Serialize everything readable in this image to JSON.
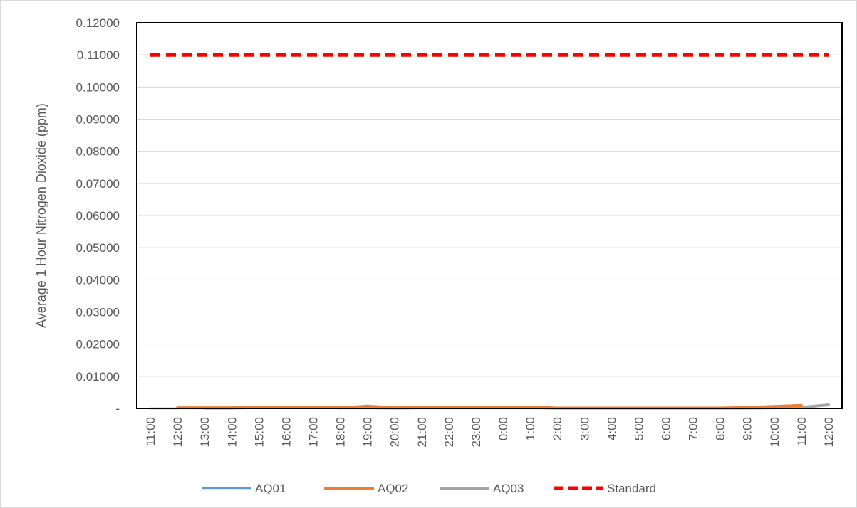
{
  "chart_data": {
    "type": "line",
    "title": "",
    "xlabel": "",
    "ylabel": "Average 1 Hour Nitrogen Dioxide (ppm)",
    "ylim": [
      0,
      0.12
    ],
    "y_ticks": [
      "-",
      "0.01000",
      "0.02000",
      "0.03000",
      "0.04000",
      "0.05000",
      "0.06000",
      "0.07000",
      "0.08000",
      "0.09000",
      "0.10000",
      "0.11000",
      "0.12000"
    ],
    "categories": [
      "11:00",
      "12:00",
      "13:00",
      "14:00",
      "15:00",
      "16:00",
      "17:00",
      "18:00",
      "19:00",
      "20:00",
      "21:00",
      "22:00",
      "23:00",
      "0:00",
      "1:00",
      "2:00",
      "3:00",
      "4:00",
      "5:00",
      "6:00",
      "7:00",
      "8:00",
      "9:00",
      "10:00",
      "11:00",
      "12:00"
    ],
    "series": [
      {
        "name": "AQ01",
        "color": "#5b9bd5",
        "values": [
          0,
          0,
          null,
          null,
          null,
          null,
          null,
          null,
          null,
          null,
          null,
          null,
          null,
          null,
          null,
          null,
          null,
          null,
          null,
          null,
          null,
          null,
          null,
          null,
          null,
          null
        ]
      },
      {
        "name": "AQ02",
        "color": "#ed7d31",
        "values": [
          null,
          0.0002,
          0.0002,
          0.0002,
          0.0004,
          0.0004,
          0.0003,
          0.0002,
          0.0007,
          0.0002,
          0.0004,
          0.0004,
          0.0004,
          0.0004,
          0.0004,
          0.0001,
          0.0001,
          0.0001,
          0.0001,
          0.0001,
          0.0001,
          0.0001,
          0.0003,
          0.0006,
          0.0009,
          null
        ]
      },
      {
        "name": "AQ03",
        "color": "#a5a5a5",
        "values": [
          null,
          null,
          0.0001,
          0.0001,
          0.0003,
          0.0003,
          0.0003,
          0.0002,
          0.0002,
          0.0001,
          0.0002,
          0.0002,
          0.0002,
          0.0002,
          0.0002,
          0.0001,
          0.0001,
          0.0001,
          0.0001,
          0.0001,
          0.0001,
          0.0001,
          0.0001,
          0.0002,
          0.0003,
          0.0011
        ]
      },
      {
        "name": "Standard",
        "color": "#ff0000",
        "dashed": true,
        "values": [
          0.11,
          0.11,
          0.11,
          0.11,
          0.11,
          0.11,
          0.11,
          0.11,
          0.11,
          0.11,
          0.11,
          0.11,
          0.11,
          0.11,
          0.11,
          0.11,
          0.11,
          0.11,
          0.11,
          0.11,
          0.11,
          0.11,
          0.11,
          0.11,
          0.11,
          0.11
        ]
      }
    ],
    "grid": true,
    "legend_position": "bottom"
  }
}
